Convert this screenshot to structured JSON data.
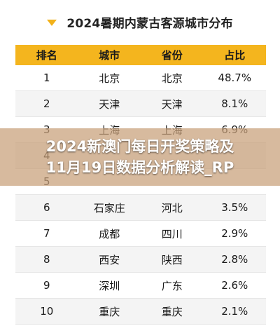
{
  "header": {
    "title": "2024暑期内蒙古客源城市分布"
  },
  "table": {
    "columns": [
      "排名",
      "城市",
      "省份",
      "占比"
    ],
    "rows": [
      {
        "rank": "1",
        "city": "北京",
        "province": "北京",
        "share": "48.7%"
      },
      {
        "rank": "2",
        "city": "天津",
        "province": "天津",
        "share": "8.1%"
      },
      {
        "rank": "3",
        "city": "上海",
        "province": "上海",
        "share": "6.9%"
      },
      {
        "rank": "4",
        "city": "",
        "province": "",
        "share": ""
      },
      {
        "rank": "5",
        "city": "",
        "province": "",
        "share": ""
      },
      {
        "rank": "6",
        "city": "石家庄",
        "province": "河北",
        "share": "3.5%"
      },
      {
        "rank": "7",
        "city": "成都",
        "province": "四川",
        "share": "2.9%"
      },
      {
        "rank": "8",
        "city": "西安",
        "province": "陕西",
        "share": "2.8%"
      },
      {
        "rank": "9",
        "city": "深圳",
        "province": "广东",
        "share": "2.6%"
      },
      {
        "rank": "10",
        "city": "重庆",
        "province": "重庆",
        "share": "2.1%"
      }
    ]
  },
  "overlay": {
    "line1": "2024新澳门每日开奖策略及",
    "line2": "11月19日数据分析解读_RP"
  },
  "colors": {
    "accent": "#f4b51e",
    "overlay": "#c8a078"
  }
}
